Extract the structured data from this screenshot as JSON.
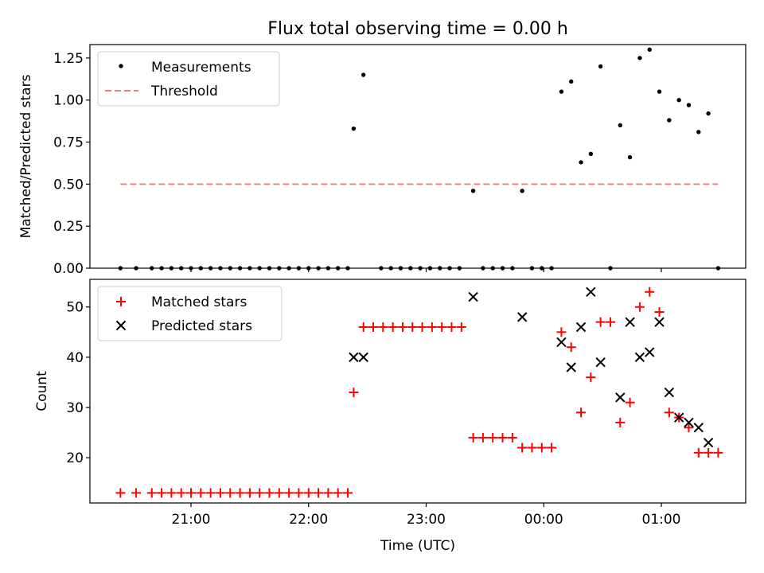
{
  "title": "Flux total observing time = 0.00 h",
  "xlabel": "Time (UTC)",
  "x_tick_labels": [
    "21:00",
    "22:00",
    "23:00",
    "00:00",
    "01:00"
  ],
  "chart_data": [
    {
      "type": "scatter",
      "ylabel": "Matched/Predicted stars",
      "ylim": [
        0.0,
        1.33
      ],
      "y_ticks": [
        0.0,
        0.25,
        0.5,
        0.75,
        1.0,
        1.25
      ],
      "y_tick_labels": [
        "0.00",
        "0.25",
        "0.50",
        "0.75",
        "1.00",
        "1.25"
      ],
      "legend_position": "upper-left",
      "series": [
        {
          "name": "Measurements",
          "kind": "scatter",
          "marker": "dot",
          "color": "#000000",
          "points": [
            [
              "20:24",
              0
            ],
            [
              "20:32",
              0
            ],
            [
              "20:40",
              0
            ],
            [
              "20:45",
              0
            ],
            [
              "20:50",
              0
            ],
            [
              "20:55",
              0
            ],
            [
              "21:00",
              0
            ],
            [
              "21:05",
              0
            ],
            [
              "21:10",
              0
            ],
            [
              "21:15",
              0
            ],
            [
              "21:20",
              0
            ],
            [
              "21:25",
              0
            ],
            [
              "21:30",
              0
            ],
            [
              "21:35",
              0
            ],
            [
              "21:40",
              0
            ],
            [
              "21:45",
              0
            ],
            [
              "21:50",
              0
            ],
            [
              "21:55",
              0
            ],
            [
              "22:00",
              0
            ],
            [
              "22:05",
              0
            ],
            [
              "22:10",
              0
            ],
            [
              "22:15",
              0
            ],
            [
              "22:20",
              0
            ],
            [
              "22:23",
              0.83
            ],
            [
              "22:28",
              1.15
            ],
            [
              "22:37",
              0
            ],
            [
              "22:42",
              0
            ],
            [
              "22:47",
              0
            ],
            [
              "22:52",
              0
            ],
            [
              "22:57",
              0
            ],
            [
              "23:02",
              0
            ],
            [
              "23:07",
              0
            ],
            [
              "23:12",
              0
            ],
            [
              "23:17",
              0
            ],
            [
              "23:24",
              0.46
            ],
            [
              "23:29",
              0
            ],
            [
              "23:34",
              0
            ],
            [
              "23:39",
              0
            ],
            [
              "23:44",
              0
            ],
            [
              "23:49",
              0.46
            ],
            [
              "23:54",
              0
            ],
            [
              "23:59",
              0
            ],
            [
              "00:04",
              0
            ],
            [
              "00:09",
              1.05
            ],
            [
              "00:14",
              1.11
            ],
            [
              "00:19",
              0.63
            ],
            [
              "00:24",
              0.68
            ],
            [
              "00:29",
              1.2
            ],
            [
              "00:34",
              0
            ],
            [
              "00:39",
              0.85
            ],
            [
              "00:44",
              0.66
            ],
            [
              "00:49",
              1.25
            ],
            [
              "00:54",
              1.3
            ],
            [
              "00:59",
              1.05
            ],
            [
              "01:04",
              0.88
            ],
            [
              "01:09",
              1.0
            ],
            [
              "01:14",
              0.97
            ],
            [
              "01:19",
              0.81
            ],
            [
              "01:24",
              0.92
            ],
            [
              "01:29",
              0
            ]
          ]
        },
        {
          "name": "Threshold",
          "kind": "line",
          "style": "dashed",
          "color": "#f08080",
          "points": [
            [
              "20:24",
              0.5
            ],
            [
              "01:29",
              0.5
            ]
          ]
        }
      ]
    },
    {
      "type": "scatter",
      "ylabel": "Count",
      "ylim": [
        11,
        55.5
      ],
      "y_ticks": [
        20,
        30,
        40,
        50
      ],
      "y_tick_labels": [
        "20",
        "30",
        "40",
        "50"
      ],
      "legend_position": "upper-left",
      "series": [
        {
          "name": "Matched stars",
          "marker": "plus",
          "color": "#ff0000",
          "points": [
            [
              "20:24",
              13
            ],
            [
              "20:32",
              13
            ],
            [
              "20:40",
              13
            ],
            [
              "20:45",
              13
            ],
            [
              "20:50",
              13
            ],
            [
              "20:55",
              13
            ],
            [
              "21:00",
              13
            ],
            [
              "21:05",
              13
            ],
            [
              "21:10",
              13
            ],
            [
              "21:15",
              13
            ],
            [
              "21:20",
              13
            ],
            [
              "21:25",
              13
            ],
            [
              "21:30",
              13
            ],
            [
              "21:35",
              13
            ],
            [
              "21:40",
              13
            ],
            [
              "21:45",
              13
            ],
            [
              "21:50",
              13
            ],
            [
              "21:55",
              13
            ],
            [
              "22:00",
              13
            ],
            [
              "22:05",
              13
            ],
            [
              "22:10",
              13
            ],
            [
              "22:15",
              13
            ],
            [
              "22:20",
              13
            ],
            [
              "22:23",
              33
            ],
            [
              "22:28",
              46
            ],
            [
              "22:33",
              46
            ],
            [
              "22:38",
              46
            ],
            [
              "22:43",
              46
            ],
            [
              "22:48",
              46
            ],
            [
              "22:53",
              46
            ],
            [
              "22:58",
              46
            ],
            [
              "23:03",
              46
            ],
            [
              "23:08",
              46
            ],
            [
              "23:13",
              46
            ],
            [
              "23:18",
              46
            ],
            [
              "23:24",
              24
            ],
            [
              "23:29",
              24
            ],
            [
              "23:34",
              24
            ],
            [
              "23:39",
              24
            ],
            [
              "23:44",
              24
            ],
            [
              "23:49",
              22
            ],
            [
              "23:54",
              22
            ],
            [
              "23:59",
              22
            ],
            [
              "00:04",
              22
            ],
            [
              "00:09",
              45
            ],
            [
              "00:14",
              42
            ],
            [
              "00:19",
              29
            ],
            [
              "00:24",
              36
            ],
            [
              "00:29",
              47
            ],
            [
              "00:34",
              47
            ],
            [
              "00:39",
              27
            ],
            [
              "00:44",
              31
            ],
            [
              "00:49",
              50
            ],
            [
              "00:54",
              53
            ],
            [
              "00:59",
              49
            ],
            [
              "01:04",
              29
            ],
            [
              "01:09",
              28
            ],
            [
              "01:14",
              26
            ],
            [
              "01:19",
              21
            ],
            [
              "01:24",
              21
            ],
            [
              "01:29",
              21
            ]
          ]
        },
        {
          "name": "Predicted stars",
          "marker": "x",
          "color": "#000000",
          "points": [
            [
              "22:23",
              40
            ],
            [
              "22:28",
              40
            ],
            [
              "23:24",
              52
            ],
            [
              "23:49",
              48
            ],
            [
              "00:09",
              43
            ],
            [
              "00:14",
              38
            ],
            [
              "00:19",
              46
            ],
            [
              "00:24",
              53
            ],
            [
              "00:29",
              39
            ],
            [
              "00:39",
              32
            ],
            [
              "00:44",
              47
            ],
            [
              "00:49",
              40
            ],
            [
              "00:54",
              41
            ],
            [
              "00:59",
              47
            ],
            [
              "01:04",
              33
            ],
            [
              "01:09",
              28
            ],
            [
              "01:14",
              27
            ],
            [
              "01:19",
              26
            ],
            [
              "01:24",
              23
            ]
          ]
        }
      ]
    }
  ]
}
